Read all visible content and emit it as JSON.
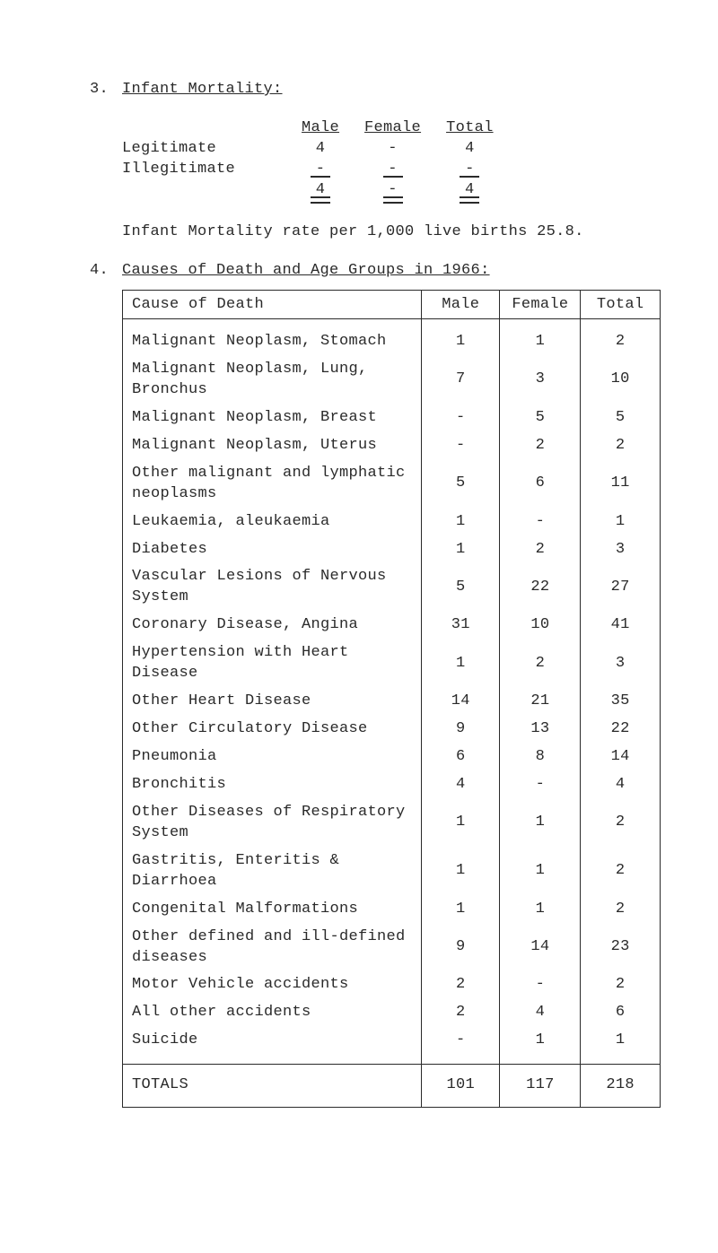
{
  "section3": {
    "number": "3.",
    "title": "Infant Mortality:",
    "columns": [
      "Male",
      "Female",
      "Total"
    ],
    "rows": [
      {
        "label": "Legitimate",
        "male": "4",
        "female": "-",
        "total": "4"
      },
      {
        "label": "Illegitimate",
        "male": "-",
        "female": "-",
        "total": "-"
      }
    ],
    "sum": {
      "male": "4",
      "female": "-",
      "total": "4"
    },
    "rate_line": "Infant Mortality rate per 1,000 live births  25.8."
  },
  "section4": {
    "number": "4.",
    "title": "Causes of Death and Age Groups in 1966:"
  },
  "death_table": {
    "headers": [
      "Cause of Death",
      "Male",
      "Female",
      "Total"
    ],
    "rows": [
      {
        "cause": "Malignant Neoplasm, Stomach",
        "male": "1",
        "female": "1",
        "total": "2"
      },
      {
        "cause": "Malignant Neoplasm, Lung, Bronchus",
        "male": "7",
        "female": "3",
        "total": "10"
      },
      {
        "cause": "Malignant Neoplasm, Breast",
        "male": "-",
        "female": "5",
        "total": "5"
      },
      {
        "cause": "Malignant Neoplasm, Uterus",
        "male": "-",
        "female": "2",
        "total": "2"
      },
      {
        "cause": "Other malignant and lymphatic neoplasms",
        "male": "5",
        "female": "6",
        "total": "11"
      },
      {
        "cause": "Leukaemia, aleukaemia",
        "male": "1",
        "female": "-",
        "total": "1"
      },
      {
        "cause": "Diabetes",
        "male": "1",
        "female": "2",
        "total": "3"
      },
      {
        "cause": "Vascular Lesions of Nervous System",
        "male": "5",
        "female": "22",
        "total": "27"
      },
      {
        "cause": "Coronary Disease, Angina",
        "male": "31",
        "female": "10",
        "total": "41"
      },
      {
        "cause": "Hypertension with Heart Disease",
        "male": "1",
        "female": "2",
        "total": "3"
      },
      {
        "cause": "Other Heart Disease",
        "male": "14",
        "female": "21",
        "total": "35"
      },
      {
        "cause": "Other Circulatory Disease",
        "male": "9",
        "female": "13",
        "total": "22"
      },
      {
        "cause": "Pneumonia",
        "male": "6",
        "female": "8",
        "total": "14"
      },
      {
        "cause": "Bronchitis",
        "male": "4",
        "female": "-",
        "total": "4"
      },
      {
        "cause": "Other Diseases of Respiratory System",
        "male": "1",
        "female": "1",
        "total": "2"
      },
      {
        "cause": "Gastritis, Enteritis & Diarrhoea",
        "male": "1",
        "female": "1",
        "total": "2"
      },
      {
        "cause": "Congenital Malformations",
        "male": "1",
        "female": "1",
        "total": "2"
      },
      {
        "cause": "Other defined and ill-defined diseases",
        "male": "9",
        "female": "14",
        "total": "23"
      },
      {
        "cause": "Motor Vehicle accidents",
        "male": "2",
        "female": "-",
        "total": "2"
      },
      {
        "cause": "All other accidents",
        "male": "2",
        "female": "4",
        "total": "6"
      },
      {
        "cause": "Suicide",
        "male": "-",
        "female": "1",
        "total": "1"
      }
    ],
    "totals": {
      "label": "TOTALS",
      "male": "101",
      "female": "117",
      "total": "218"
    }
  }
}
